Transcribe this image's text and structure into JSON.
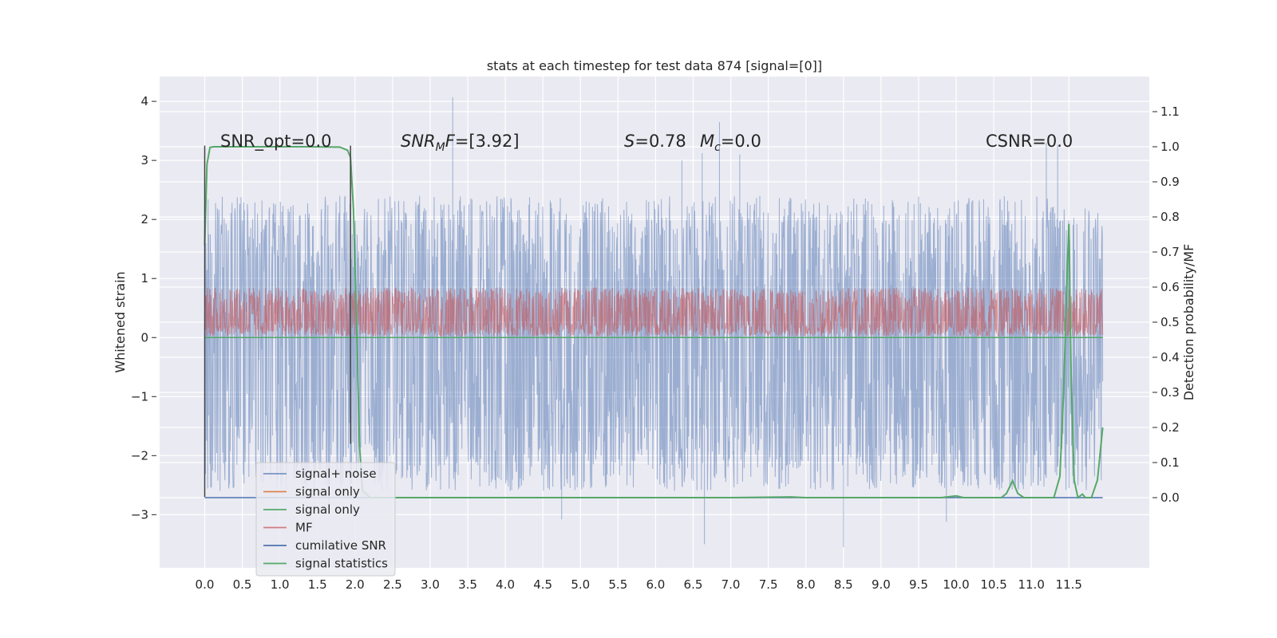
{
  "chart_data": {
    "type": "line",
    "title": "stats at each timestep for test data 874 [signal=[0]]",
    "xlabel": "",
    "ylabel": "Whitened strain",
    "y2label": "Detection probability/MF",
    "xlim": [
      -0.6,
      12.57
    ],
    "ylim": [
      -3.9,
      4.42
    ],
    "y2lim": [
      -0.2,
      1.2
    ],
    "x_ticks": [
      0.0,
      0.5,
      1.0,
      1.5,
      2.0,
      2.5,
      3.0,
      3.5,
      4.0,
      4.5,
      5.0,
      5.5,
      6.0,
      6.5,
      7.0,
      7.5,
      8.0,
      8.5,
      9.0,
      9.5,
      10.0,
      10.5,
      11.0,
      11.5
    ],
    "x_tick_labels": [
      "0.0",
      "0.5",
      "1.0",
      "1.5",
      "2.0",
      "2.5",
      "3.0",
      "3.5",
      "4.0",
      "4.5",
      "5.0",
      "5.5",
      "6.0",
      "6.5",
      "7.0",
      "7.5",
      "8.0",
      "8.5",
      "9.0",
      "9.5",
      "10.0",
      "10.5",
      "11.0",
      "11.5"
    ],
    "y_ticks": [
      -3,
      -2,
      -1,
      0,
      1,
      2,
      3,
      4
    ],
    "y_tick_labels": [
      "−3",
      "−2",
      "−1",
      "0",
      "1",
      "2",
      "3",
      "4"
    ],
    "y2_ticks": [
      0.0,
      0.1,
      0.2,
      0.3,
      0.4,
      0.5,
      0.6,
      0.7,
      0.8,
      0.9,
      1.0,
      1.1
    ],
    "y2_tick_labels": [
      "0.0",
      "0.1",
      "0.2",
      "0.3",
      "0.4",
      "0.5",
      "0.6",
      "0.7",
      "0.8",
      "0.9",
      "1.0",
      "1.1"
    ],
    "grid": true,
    "legend_position": "lower-left",
    "annotations": [
      {
        "text": "SNR_opt=0.0",
        "x": 0.2,
        "y": 3.3
      },
      {
        "text": "SNR_MF=[3.92]",
        "x": 2.6,
        "y": 3.3
      },
      {
        "text": "S=0.78   M_c=0.0",
        "x": 5.6,
        "y": 3.3
      },
      {
        "text": "CSNR=0.0",
        "x": 10.4,
        "y": 3.3
      }
    ],
    "vlines": [
      {
        "x": 0.0,
        "ymin": -2.7,
        "ymax": 3.25
      },
      {
        "x": 1.94,
        "ymin": -1.8,
        "ymax": 3.25
      }
    ],
    "series": [
      {
        "name": "signal+ noise",
        "color": "#4c72b0",
        "axis": "left",
        "kind": "noise",
        "x_range": [
          0.0,
          11.95
        ],
        "baseline": 0.0,
        "envelope": [
          -2.6,
          2.4
        ],
        "spikes": [
          [
            3.3,
            4.07
          ],
          [
            6.85,
            3.65
          ],
          [
            6.62,
            3.12
          ],
          [
            6.65,
            -3.5
          ],
          [
            8.5,
            -3.55
          ],
          [
            9.87,
            -3.12
          ],
          [
            4.75,
            -3.08
          ],
          [
            11.2,
            3.3
          ],
          [
            11.35,
            3.26
          ],
          [
            7.12,
            3.1
          ],
          [
            6.35,
            3.0
          ],
          [
            1.65,
            -3.0
          ]
        ]
      },
      {
        "name": "signal only",
        "color": "#dd8452",
        "axis": "left",
        "kind": "flat",
        "x": [
          0.0,
          11.95
        ],
        "values": [
          0.0,
          0.0
        ]
      },
      {
        "name": "signal only",
        "color": "#55a868",
        "axis": "left",
        "kind": "flat",
        "x": [
          0.0,
          11.95
        ],
        "values": [
          0.0,
          0.0
        ]
      },
      {
        "name": "MF",
        "color": "#c44e52",
        "axis": "left",
        "kind": "noise",
        "x_range": [
          0.0,
          11.95
        ],
        "baseline": 0.3,
        "envelope": [
          0.02,
          0.85
        ],
        "spikes": []
      },
      {
        "name": "cumilative SNR",
        "color": "#4c72b0",
        "axis": "right",
        "kind": "flat",
        "x": [
          0.0,
          11.95
        ],
        "values": [
          0.0,
          0.0
        ]
      },
      {
        "name": "signal statistics",
        "color": "#55a868",
        "axis": "right",
        "kind": "line",
        "x": [
          0.0,
          0.03,
          0.07,
          0.12,
          0.3,
          0.8,
          1.4,
          1.8,
          1.9,
          1.94,
          1.98,
          2.02,
          2.06,
          2.1,
          2.2,
          3.0,
          5.0,
          7.0,
          7.8,
          8.0,
          9.0,
          9.8,
          10.0,
          10.1,
          10.5,
          10.6,
          10.67,
          10.75,
          10.82,
          10.9,
          11.3,
          11.38,
          11.43,
          11.47,
          11.5,
          11.53,
          11.57,
          11.62,
          11.68,
          11.72,
          11.76,
          11.8,
          11.88,
          11.95
        ],
        "values": [
          0.72,
          0.95,
          0.998,
          1.0,
          1.0,
          1.0,
          1.0,
          0.999,
          0.99,
          0.97,
          0.82,
          0.5,
          0.15,
          0.02,
          0.0,
          0.0,
          0.0,
          0.0,
          0.002,
          0.0,
          0.0,
          0.0,
          0.005,
          0.0,
          0.0,
          0.0,
          0.012,
          0.048,
          0.012,
          0.0,
          0.0,
          0.06,
          0.3,
          0.6,
          0.78,
          0.35,
          0.05,
          0.0,
          0.01,
          0.0,
          0.0,
          0.0,
          0.05,
          0.2
        ]
      }
    ]
  }
}
